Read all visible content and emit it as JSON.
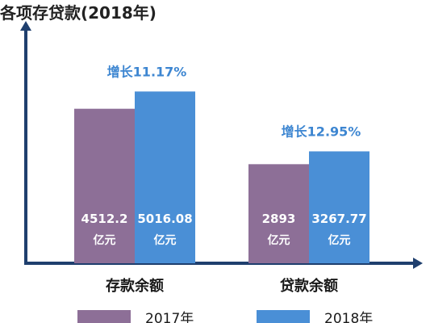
{
  "title": "各项存贷款(2018年)",
  "chart_data": {
    "type": "bar",
    "categories": [
      "存款余额",
      "贷款余额"
    ],
    "series": [
      {
        "name": "2017年",
        "values": [
          4512.2,
          2893
        ],
        "labels": [
          "4512.2",
          "2893"
        ],
        "color": "#8d6f97"
      },
      {
        "name": "2018年",
        "values": [
          5016.08,
          3267.77
        ],
        "labels": [
          "5016.08",
          "3267.77"
        ],
        "color": "#4a8fd6"
      }
    ],
    "unit": "亿元",
    "growth_labels": [
      "增长11.17%",
      "增长12.95%"
    ],
    "growth_color": "#3d86d1",
    "axis_color": "#1f3f6e",
    "legend_position": "bottom"
  }
}
